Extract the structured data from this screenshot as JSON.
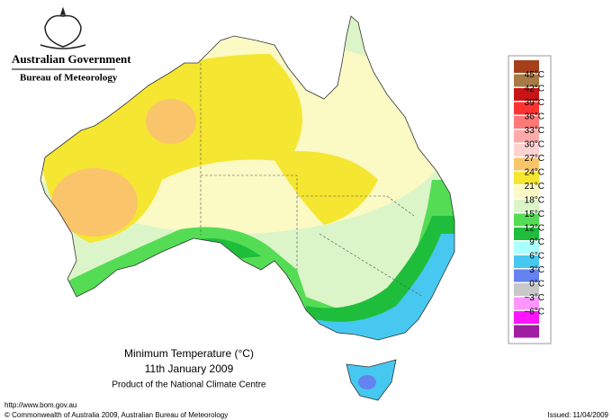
{
  "header": {
    "government": "Australian Government",
    "bureau": "Bureau of Meteorology"
  },
  "title": {
    "main": "Minimum Temperature (°C)",
    "date": "11th January 2009",
    "product": "Product of the National Climate Centre"
  },
  "legend": {
    "colors": [
      "#a5401a",
      "#a87a45",
      "#c81414",
      "#ff3232",
      "#ff7878",
      "#ffaaaa",
      "#ffd2d2",
      "#f9c46a",
      "#f5e631",
      "#fbf9c4",
      "#dcf5c8",
      "#55dc55",
      "#1ebe3c",
      "#aaffff",
      "#46c8f0",
      "#6482f0",
      "#c8c8c8",
      "#ff96ff",
      "#ff14ff",
      "#a01ea0"
    ],
    "labels": [
      "45°C",
      "42°C",
      "39°C",
      "36°C",
      "33°C",
      "30°C",
      "27°C",
      "24°C",
      "21°C",
      "18°C",
      "15°C",
      "12°C",
      "9°C",
      "6°C",
      "3°C",
      "0°C",
      "−3°C",
      "−6°C"
    ]
  },
  "footer": {
    "url": "http://www.bom.gov.au",
    "copyright": "© Commonwealth of Australia 2009, Australian Bureau of Meteorology",
    "issued": "Issued: 11/04/2009"
  }
}
